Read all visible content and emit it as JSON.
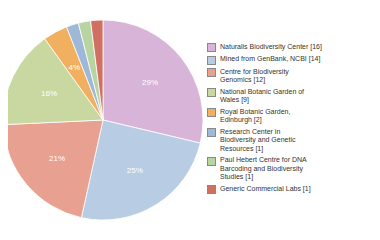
{
  "chart_data": {
    "type": "pie",
    "categories": [
      "Naturalis Biodiversity Center [16]",
      "Mined from GenBank, NCBI [14]",
      "Centre for Biodiversity\nGenomics [12]",
      "National Botanic Garden of\nWales [9]",
      "Royal Botanic Garden,\nEdinburgh [2]",
      "Research Center in\nBiodiversity and Genetic\nResources [1]",
      "Paul Hebert Centre for DNA\nBarcoding and Biodiversity\nStudies [1]",
      "Generic Commercial Labs [1]"
    ],
    "values": [
      29,
      25,
      21,
      16,
      4,
      2,
      2,
      2
    ],
    "value_labels": [
      "29%",
      "25%",
      "21%",
      "16%",
      "4%",
      null,
      null,
      null
    ],
    "data_labels": true,
    "colors": [
      "#d8b4d8",
      "#b8cce4",
      "#e8a090",
      "#c8d8a0",
      "#f0b060",
      "#a0b8d8",
      "#b8d4a0",
      "#d07060"
    ],
    "legend": "right"
  }
}
